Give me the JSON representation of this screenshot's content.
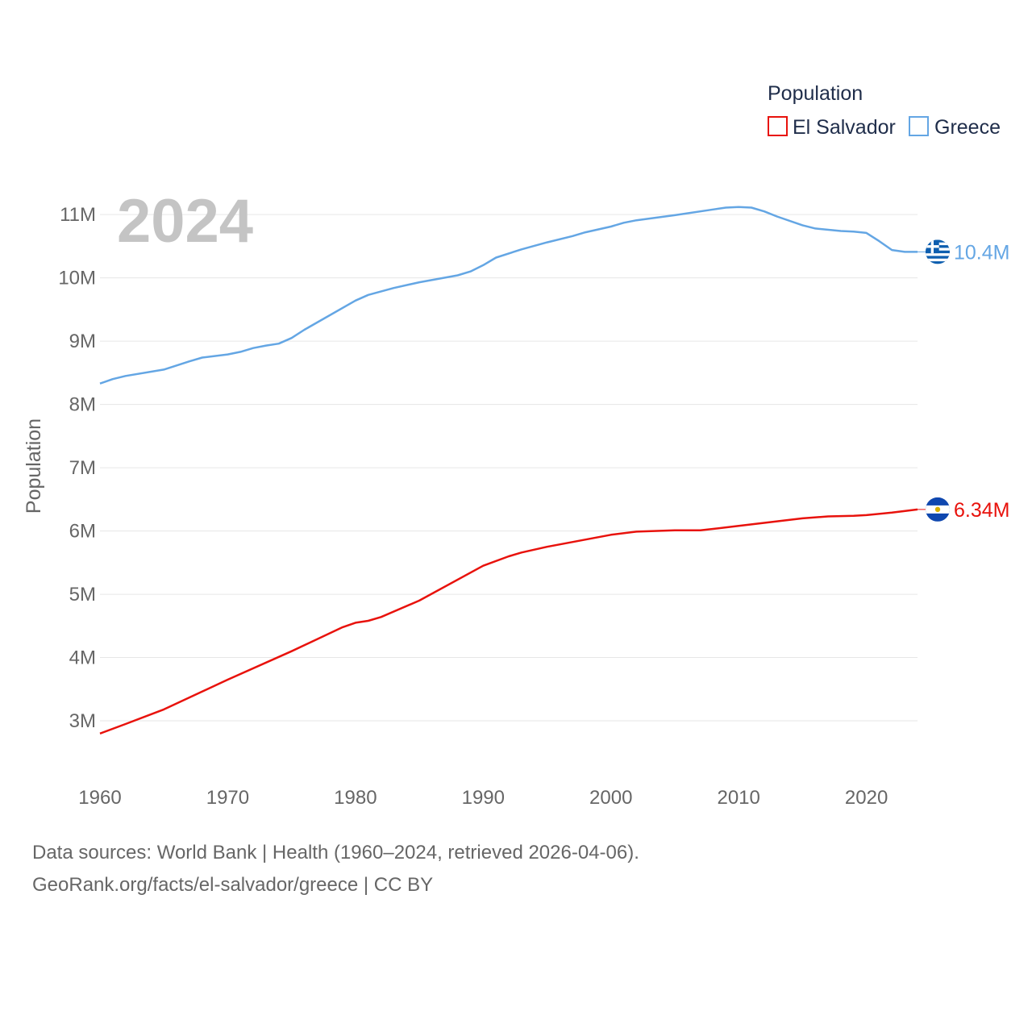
{
  "chart_data": {
    "type": "line",
    "legend_title": "Population",
    "ylabel": "Population",
    "year_label": "2024",
    "xlim": [
      1960,
      2024
    ],
    "ylim": [
      2300000,
      11600000
    ],
    "x_ticks": [
      1960,
      1970,
      1980,
      1990,
      2000,
      2010,
      2020
    ],
    "x_tick_labels": [
      "1960",
      "1970",
      "1980",
      "1990",
      "2000",
      "2010",
      "2020"
    ],
    "y_ticks": [
      3000000,
      4000000,
      5000000,
      6000000,
      7000000,
      8000000,
      9000000,
      10000000,
      11000000
    ],
    "y_tick_labels": [
      "3M",
      "4M",
      "5M",
      "6M",
      "7M",
      "8M",
      "9M",
      "10M",
      "11M"
    ],
    "series": [
      {
        "name": "El Salvador",
        "color": "#e8120c",
        "end_label": "6.34M",
        "flag": "el-salvador-flag-icon",
        "points": [
          [
            1960,
            2800000
          ],
          [
            1962,
            2950000
          ],
          [
            1965,
            3180000
          ],
          [
            1970,
            3650000
          ],
          [
            1975,
            4100000
          ],
          [
            1979,
            4480000
          ],
          [
            1980,
            4550000
          ],
          [
            1981,
            4580000
          ],
          [
            1982,
            4640000
          ],
          [
            1985,
            4900000
          ],
          [
            1990,
            5450000
          ],
          [
            1992,
            5600000
          ],
          [
            1993,
            5660000
          ],
          [
            1995,
            5750000
          ],
          [
            2000,
            5940000
          ],
          [
            2002,
            5990000
          ],
          [
            2005,
            6010000
          ],
          [
            2007,
            6010000
          ],
          [
            2010,
            6080000
          ],
          [
            2015,
            6200000
          ],
          [
            2017,
            6230000
          ],
          [
            2019,
            6240000
          ],
          [
            2020,
            6250000
          ],
          [
            2022,
            6290000
          ],
          [
            2024,
            6340000
          ]
        ]
      },
      {
        "name": "Greece",
        "color": "#64a6e4",
        "end_label": "10.4M",
        "flag": "greece-flag-icon",
        "points": [
          [
            1960,
            8330000
          ],
          [
            1961,
            8400000
          ],
          [
            1962,
            8450000
          ],
          [
            1965,
            8550000
          ],
          [
            1967,
            8680000
          ],
          [
            1968,
            8740000
          ],
          [
            1970,
            8790000
          ],
          [
            1971,
            8830000
          ],
          [
            1972,
            8890000
          ],
          [
            1973,
            8930000
          ],
          [
            1974,
            8960000
          ],
          [
            1975,
            9050000
          ],
          [
            1976,
            9180000
          ],
          [
            1980,
            9640000
          ],
          [
            1981,
            9730000
          ],
          [
            1983,
            9840000
          ],
          [
            1985,
            9930000
          ],
          [
            1988,
            10040000
          ],
          [
            1989,
            10100000
          ],
          [
            1990,
            10200000
          ],
          [
            1991,
            10320000
          ],
          [
            1993,
            10450000
          ],
          [
            1995,
            10560000
          ],
          [
            1997,
            10660000
          ],
          [
            1998,
            10720000
          ],
          [
            2000,
            10810000
          ],
          [
            2001,
            10870000
          ],
          [
            2002,
            10910000
          ],
          [
            2005,
            10990000
          ],
          [
            2008,
            11080000
          ],
          [
            2009,
            11110000
          ],
          [
            2010,
            11120000
          ],
          [
            2011,
            11110000
          ],
          [
            2012,
            11050000
          ],
          [
            2013,
            10970000
          ],
          [
            2015,
            10830000
          ],
          [
            2016,
            10780000
          ],
          [
            2018,
            10740000
          ],
          [
            2019,
            10730000
          ],
          [
            2020,
            10710000
          ],
          [
            2021,
            10580000
          ],
          [
            2022,
            10440000
          ],
          [
            2023,
            10410000
          ],
          [
            2024,
            10410000
          ]
        ]
      }
    ]
  },
  "footer": {
    "line1": "Data sources: World Bank | Health (1960–2024, retrieved 2026-04-06).",
    "line2": "GeoRank.org/facts/el-salvador/greece | CC BY"
  }
}
